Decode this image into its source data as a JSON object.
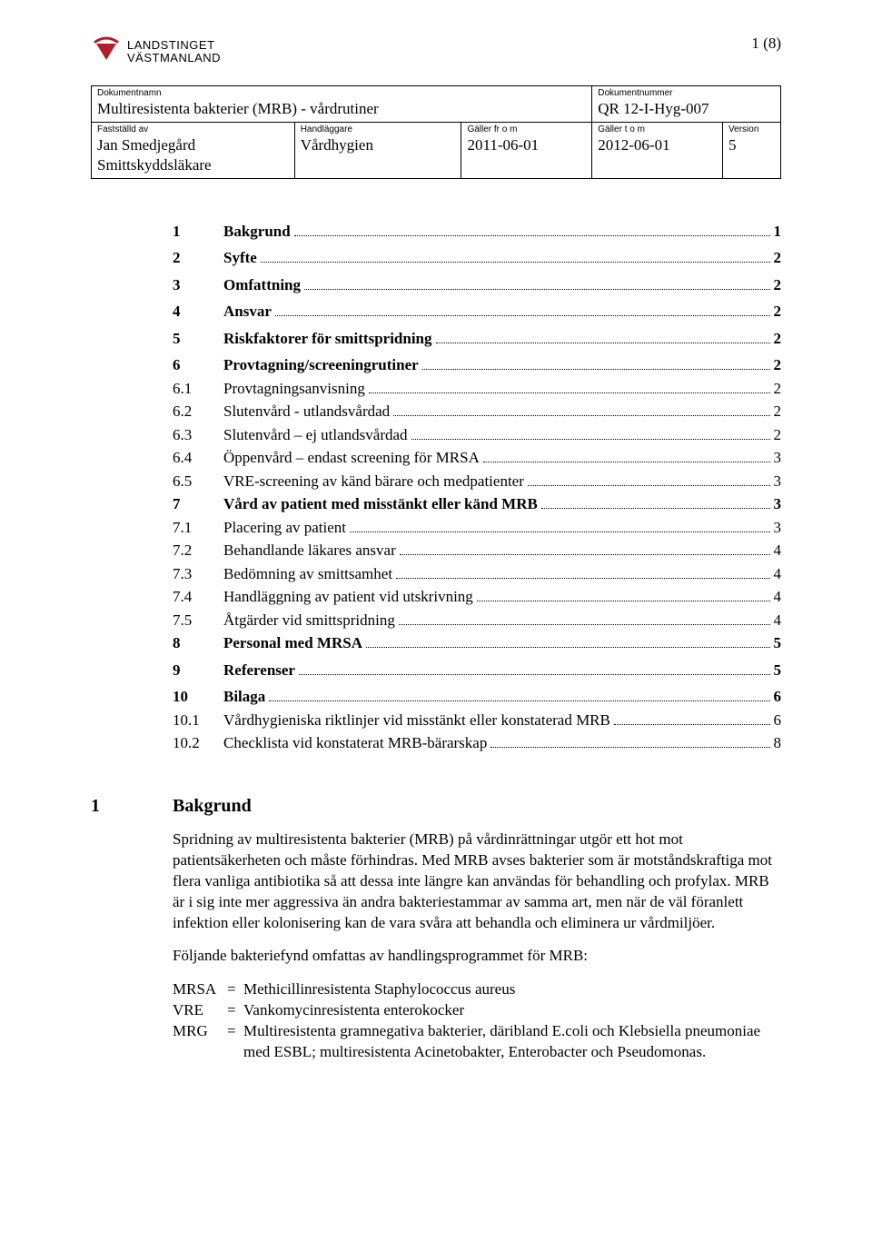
{
  "page_number_label": "1 (8)",
  "logo": {
    "icon_name": "landstinget-logo-icon",
    "line1": "LANDSTINGET",
    "line2": "VÄSTMANLAND",
    "triangle_color": "#b01e2e",
    "arc_color": "#b01e2e"
  },
  "header_table": {
    "labels": {
      "dokumentnamn": "Dokumentnamn",
      "dokumentnummer": "Dokumentnummer",
      "faststalld_av": "Fastställd av",
      "handlaggare": "Handläggare",
      "galler_from": "Gäller fr o m",
      "galler_tom": "Gäller t o m",
      "version": "Version"
    },
    "values": {
      "dokumentnamn": "Multiresistenta bakterier (MRB) - vårdrutiner",
      "dokumentnummer": "QR 12-I-Hyg-007",
      "faststalld_av": "Jan Smedjegård\nSmittskyddsläkare",
      "handlaggare": "Vårdhygien",
      "galler_from": "2011-06-01",
      "galler_tom": "2012-06-01",
      "version": "5"
    }
  },
  "toc": [
    {
      "level": 1,
      "num": "1",
      "text": "Bakgrund",
      "page": "1"
    },
    {
      "level": 1,
      "num": "2",
      "text": "Syfte",
      "page": "2"
    },
    {
      "level": 1,
      "num": "3",
      "text": "Omfattning",
      "page": "2"
    },
    {
      "level": 1,
      "num": "4",
      "text": "Ansvar",
      "page": "2"
    },
    {
      "level": 1,
      "num": "5",
      "text": "Riskfaktorer för smittspridning",
      "page": "2"
    },
    {
      "level": 1,
      "num": "6",
      "text": "Provtagning/screeningrutiner",
      "page": "2"
    },
    {
      "level": 2,
      "num": "6.1",
      "text": "Provtagningsanvisning",
      "page": "2"
    },
    {
      "level": 2,
      "num": "6.2",
      "text": "Slutenvård - utlandsvårdad",
      "page": "2"
    },
    {
      "level": 2,
      "num": "6.3",
      "text": "Slutenvård – ej utlandsvårdad",
      "page": "2"
    },
    {
      "level": 2,
      "num": "6.4",
      "text": "Öppenvård – endast screening för MRSA",
      "page": "3"
    },
    {
      "level": 2,
      "num": "6.5",
      "text": "VRE-screening av känd bärare och medpatienter",
      "page": "3"
    },
    {
      "level": 1,
      "num": "7",
      "text": "Vård av patient med misstänkt eller känd MRB",
      "page": "3"
    },
    {
      "level": 2,
      "num": "7.1",
      "text": "Placering av patient",
      "page": "3"
    },
    {
      "level": 2,
      "num": "7.2",
      "text": "Behandlande läkares  ansvar",
      "page": "4"
    },
    {
      "level": 2,
      "num": "7.3",
      "text": "Bedömning av smittsamhet",
      "page": "4"
    },
    {
      "level": 2,
      "num": "7.4",
      "text": "Handläggning av patient vid utskrivning",
      "page": "4"
    },
    {
      "level": 2,
      "num": "7.5",
      "text": "Åtgärder vid smittspridning",
      "page": "4"
    },
    {
      "level": 1,
      "num": "8",
      "text": "Personal med MRSA",
      "page": "5"
    },
    {
      "level": 1,
      "num": "9",
      "text": "Referenser",
      "page": "5"
    },
    {
      "level": 1,
      "num": "10",
      "text": "Bilaga",
      "page": "6"
    },
    {
      "level": 2,
      "num": "10.1",
      "text": "Vårdhygieniska riktlinjer vid misstänkt eller konstaterad MRB",
      "page": "6"
    },
    {
      "level": 2,
      "num": "10.2",
      "text": "Checklista vid konstaterat MRB-bärarskap",
      "page": "8"
    }
  ],
  "section": {
    "num": "1",
    "title": "Bakgrund",
    "para1": "Spridning av multiresistenta bakterier (MRB) på vårdinrättningar utgör ett hot mot patientsäkerheten och måste förhindras. Med MRB avses bakterier som är motståndskraftiga mot flera vanliga antibiotika så att dessa inte längre kan användas för behandling och profylax. MRB är i sig inte mer aggressiva än andra bakteriestammar av samma art, men när de väl föranlett infektion eller kolonisering kan de vara svåra att behandla och eliminera ur vårdmiljöer.",
    "para2": "Följande bakteriefynd omfattas av handlingsprogrammet för MRB:",
    "defs": [
      {
        "term": "MRSA",
        "desc": "Methicillinresistenta Staphylococcus aureus"
      },
      {
        "term": "VRE",
        "desc": "Vankomycinresistenta enterokocker"
      },
      {
        "term": "MRG",
        "desc": "Multiresistenta gramnegativa bakterier, däribland E.coli och Klebsiella pneumoniae med ESBL; multiresistenta Acinetobakter, Enterobacter och Pseudomonas."
      }
    ]
  }
}
